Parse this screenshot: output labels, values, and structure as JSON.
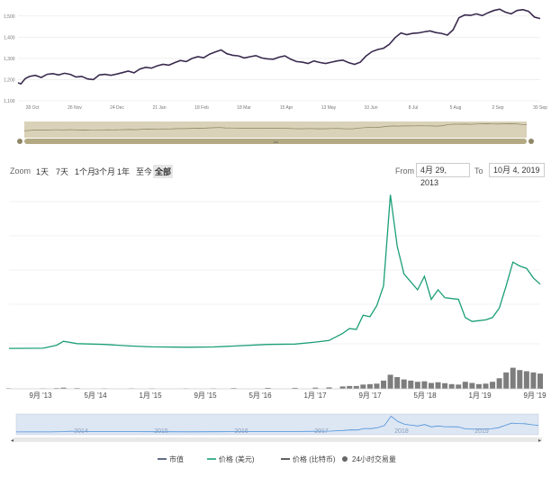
{
  "chart_data": [
    {
      "type": "line",
      "title": "",
      "y_ticks": [
        "1,100",
        "1,200",
        "1,300",
        "1,400",
        "1,500"
      ],
      "ylim": [
        1100,
        1550
      ],
      "x_ticks": [
        "28 Oct",
        "26 Nov",
        "24 Dec",
        "21 Jan",
        "18 Feb",
        "18 Mar",
        "15 Apr",
        "13 May",
        "10 Jun",
        "8 Jul",
        "5 Aug",
        "2 Sep",
        "30 Sep"
      ],
      "series": [
        {
          "color": "#3a2a4e",
          "x": [
            0,
            2,
            5,
            8,
            12,
            16,
            20,
            24,
            28,
            32,
            36,
            40,
            44,
            48,
            52,
            56,
            60,
            64,
            68,
            72,
            76,
            80,
            84,
            88,
            92,
            96,
            100,
            104,
            108,
            112,
            116,
            120,
            124,
            128,
            132,
            136,
            140,
            144,
            148,
            152,
            156,
            160,
            164,
            168,
            172,
            176,
            180,
            184,
            188,
            192,
            196,
            200,
            204,
            208,
            212,
            216,
            220,
            224,
            228,
            232,
            236,
            240,
            244,
            248,
            252,
            256,
            260,
            264,
            268,
            272,
            276,
            280,
            284,
            288,
            292,
            296,
            300,
            304,
            308,
            312,
            316,
            320,
            324,
            328,
            332,
            336,
            340,
            344,
            348,
            352,
            356,
            360
          ],
          "values": [
            1185,
            1180,
            1205,
            1215,
            1220,
            1210,
            1225,
            1228,
            1222,
            1230,
            1225,
            1212,
            1215,
            1203,
            1200,
            1222,
            1225,
            1220,
            1226,
            1233,
            1240,
            1232,
            1250,
            1258,
            1254,
            1265,
            1272,
            1268,
            1280,
            1290,
            1285,
            1300,
            1308,
            1303,
            1320,
            1330,
            1340,
            1322,
            1315,
            1312,
            1302,
            1308,
            1313,
            1302,
            1298,
            1296,
            1306,
            1312,
            1296,
            1285,
            1282,
            1276,
            1288,
            1281,
            1276,
            1282,
            1288,
            1292,
            1280,
            1272,
            1282,
            1312,
            1332,
            1342,
            1348,
            1366,
            1398,
            1420,
            1412,
            1418,
            1420,
            1425,
            1430,
            1422,
            1418,
            1410,
            1435,
            1492,
            1505,
            1503,
            1510,
            1502,
            1515,
            1526,
            1532,
            1518,
            1510,
            1526,
            1530,
            1522,
            1495,
            1488
          ]
        }
      ],
      "navigator_x_labels": [
        "Jul"
      ]
    },
    {
      "type": "area",
      "title": "",
      "x_ticks": [
        "9月 '13",
        "5月 '14",
        "1月 '15",
        "9月 '15",
        "5月 '16",
        "1月 '17",
        "9月 '17",
        "5月 '18",
        "1月 '19",
        "9月 '19"
      ],
      "y_ticks": [],
      "ylim": [
        0,
        20000
      ],
      "series": [
        {
          "name": "价格 (美元)",
          "color": "#1b9e77",
          "x": [
            "2013-04",
            "2013-09",
            "2013-11",
            "2013-12",
            "2014-02",
            "2014-06",
            "2014-10",
            "2015-01",
            "2015-06",
            "2015-10",
            "2016-01",
            "2016-06",
            "2016-10",
            "2017-01",
            "2017-03",
            "2017-05",
            "2017-06",
            "2017-07",
            "2017-08",
            "2017-09",
            "2017-10",
            "2017-11",
            "2017-12",
            "2018-01",
            "2018-02",
            "2018-03",
            "2018-04",
            "2018-05",
            "2018-06",
            "2018-07",
            "2018-08",
            "2018-09",
            "2018-10",
            "2018-11",
            "2018-12",
            "2019-01",
            "2019-02",
            "2019-03",
            "2019-04",
            "2019-05",
            "2019-06",
            "2019-07",
            "2019-08",
            "2019-09",
            "2019-10"
          ],
          "values": [
            100,
            120,
            500,
            1000,
            700,
            600,
            400,
            300,
            250,
            280,
            400,
            600,
            650,
            900,
            1100,
            2000,
            2600,
            2500,
            4300,
            4100,
            5500,
            8000,
            19500,
            13000,
            9500,
            8500,
            7500,
            9200,
            6300,
            7500,
            6500,
            6400,
            6300,
            4000,
            3500,
            3600,
            3700,
            4000,
            5200,
            8000,
            11000,
            10500,
            10200,
            9000,
            8200
          ]
        },
        {
          "name": "24小时交易量",
          "color": "#666666",
          "values": [
            2,
            2,
            3,
            5,
            3,
            2,
            2,
            2,
            2,
            2,
            3,
            4,
            4,
            5,
            6,
            10,
            12,
            12,
            18,
            20,
            22,
            35,
            60,
            50,
            40,
            35,
            30,
            32,
            25,
            28,
            24,
            20,
            18,
            30,
            25,
            20,
            22,
            30,
            45,
            70,
            90,
            80,
            75,
            70,
            65
          ]
        }
      ],
      "navigator_x_labels": [
        "2014",
        "2015",
        "2016",
        "2017",
        "2018",
        "2019"
      ]
    }
  ],
  "zoom": {
    "label": "Zoom",
    "buttons": [
      "1天",
      "7天",
      "1个月",
      "3个月",
      "1年",
      "至今",
      "全部"
    ],
    "active_index": 6,
    "from_label": "From",
    "from_value": "4月 29, 2013",
    "to_label": "To",
    "to_value": "10月 4, 2019"
  },
  "legend": [
    {
      "label": "市值",
      "color": "#3a4a6b",
      "marker": "line"
    },
    {
      "label": "价格 (美元)",
      "color": "#1b9e77",
      "marker": "line"
    },
    {
      "label": "价格 (比特币)",
      "color": "#3a3a3a",
      "marker": "line"
    },
    {
      "label": "24小时交易量",
      "color": "#666666",
      "marker": "dot"
    }
  ],
  "colors": {
    "navigator_top_bg": "#d9d2b8",
    "navigator_top_handle": "#b3aa84",
    "navigator_bottom_bg": "#dde6f3",
    "navigator_bottom_line": "#4a90d9",
    "grid": "#e6e6e6"
  }
}
